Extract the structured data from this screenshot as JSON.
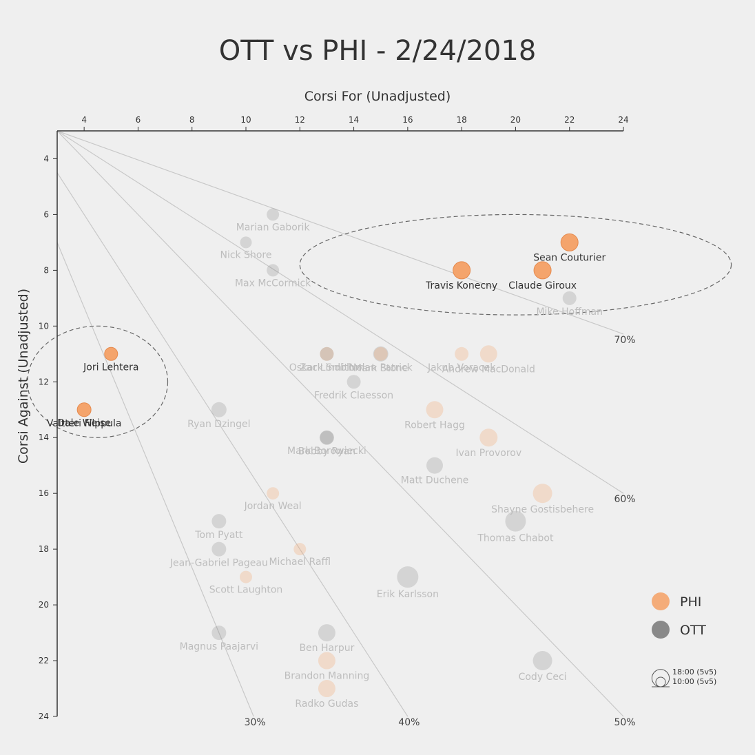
{
  "chart_data": {
    "type": "scatter",
    "title": "OTT vs PHI - 2/24/2018",
    "xlabel": "Corsi For (Unadjusted)",
    "ylabel": "Corsi Against (Unadjusted)",
    "xlim": [
      3,
      24
    ],
    "ylim": [
      3,
      24
    ],
    "x_ticks": [
      4,
      6,
      8,
      10,
      12,
      14,
      16,
      18,
      20,
      22,
      24
    ],
    "y_ticks": [
      4,
      6,
      8,
      10,
      12,
      14,
      16,
      18,
      20,
      22,
      24
    ],
    "x_axis_position": "top",
    "y_axis_inverted": true,
    "grid": false,
    "legend_position": "right",
    "colors": {
      "PHI": "#f4a46c",
      "OTT": "#777777",
      "background": "#efefef",
      "ref_line": "#c8c8c8",
      "highlight_ellipse": "#666666"
    },
    "reference_lines": [
      {
        "label": "30%",
        "ratio": 0.3
      },
      {
        "label": "40%",
        "ratio": 0.4
      },
      {
        "label": "50%",
        "ratio": 0.5
      },
      {
        "label": "60%",
        "ratio": 0.6
      },
      {
        "label": "70%",
        "ratio": 0.7
      }
    ],
    "legend": [
      {
        "name": "PHI",
        "color": "#f4a46c"
      },
      {
        "name": "OTT",
        "color": "#777777"
      }
    ],
    "size_legend": [
      {
        "label": "18:00 (5v5)",
        "toi": 18
      },
      {
        "label": "10:00 (5v5)",
        "toi": 10
      }
    ],
    "highlight_ellipses": [
      {
        "cx": 20,
        "cy": 7.8,
        "rx": 8,
        "ry": 1.8
      },
      {
        "cx": 4.5,
        "cy": 12,
        "rx": 2.6,
        "ry": 2
      }
    ],
    "points": [
      {
        "name": "Sean Couturier",
        "team": "PHI",
        "x": 22,
        "y": 7,
        "toi": 17,
        "highlight": true
      },
      {
        "name": "Travis Konecny",
        "team": "PHI",
        "x": 18,
        "y": 8,
        "toi": 17,
        "highlight": true
      },
      {
        "name": "Claude Giroux",
        "team": "PHI",
        "x": 21,
        "y": 8,
        "toi": 17,
        "highlight": true
      },
      {
        "name": "Jori Lehtera",
        "team": "PHI",
        "x": 5,
        "y": 11,
        "toi": 11,
        "highlight": true
      },
      {
        "name": "Dale Weise",
        "team": "PHI",
        "x": 4,
        "y": 13,
        "toi": 11,
        "highlight": true
      },
      {
        "name": "Valtteri Filppula",
        "team": "PHI",
        "x": 4,
        "y": 13,
        "toi": 12,
        "highlight": true
      },
      {
        "name": "Mike Hoffman",
        "team": "OTT",
        "x": 22,
        "y": 9,
        "toi": 12
      },
      {
        "name": "Marian Gaborik",
        "team": "OTT",
        "x": 11,
        "y": 6,
        "toi": 10
      },
      {
        "name": "Nick Shore",
        "team": "OTT",
        "x": 10,
        "y": 7,
        "toi": 9
      },
      {
        "name": "Max McCormick",
        "team": "OTT",
        "x": 11,
        "y": 8,
        "toi": 10
      },
      {
        "name": "Andrew MacDonald",
        "team": "PHI",
        "x": 19,
        "y": 11,
        "toi": 17
      },
      {
        "name": "Jakub Voracek",
        "team": "PHI",
        "x": 18,
        "y": 11,
        "toi": 12
      },
      {
        "name": "Oskar Lindblom",
        "team": "PHI",
        "x": 13,
        "y": 11,
        "toi": 12
      },
      {
        "name": "Zack Smith",
        "team": "OTT",
        "x": 13,
        "y": 11,
        "toi": 12
      },
      {
        "name": "Mark Stone",
        "team": "OTT",
        "x": 15,
        "y": 11,
        "toi": 14
      },
      {
        "name": "Nolan Patrick",
        "team": "PHI",
        "x": 15,
        "y": 11,
        "toi": 12
      },
      {
        "name": "Fredrik Claesson",
        "team": "OTT",
        "x": 14,
        "y": 12,
        "toi": 12
      },
      {
        "name": "Ryan Dzingel",
        "team": "OTT",
        "x": 9,
        "y": 13,
        "toi": 14
      },
      {
        "name": "Robert Hagg",
        "team": "PHI",
        "x": 17,
        "y": 13,
        "toi": 17
      },
      {
        "name": "Mark Borowiecki",
        "team": "OTT",
        "x": 13,
        "y": 14,
        "toi": 12
      },
      {
        "name": "Bobby Ryan",
        "team": "OTT",
        "x": 13,
        "y": 14,
        "toi": 13
      },
      {
        "name": "Ivan Provorov",
        "team": "PHI",
        "x": 19,
        "y": 14,
        "toi": 18
      },
      {
        "name": "Matt Duchene",
        "team": "OTT",
        "x": 17,
        "y": 15,
        "toi": 16
      },
      {
        "name": "Jordan Weal",
        "team": "PHI",
        "x": 11,
        "y": 16,
        "toi": 10
      },
      {
        "name": "Shayne Gostisbehere",
        "team": "PHI",
        "x": 21,
        "y": 16,
        "toi": 20
      },
      {
        "name": "Thomas Chabot",
        "team": "OTT",
        "x": 20,
        "y": 17,
        "toi": 22
      },
      {
        "name": "Tom Pyatt",
        "team": "OTT",
        "x": 9,
        "y": 17,
        "toi": 13
      },
      {
        "name": "Jean-Gabriel Pageau",
        "team": "OTT",
        "x": 9,
        "y": 18,
        "toi": 13
      },
      {
        "name": "Michael Raffl",
        "team": "PHI",
        "x": 12,
        "y": 18,
        "toi": 10
      },
      {
        "name": "Scott Laughton",
        "team": "PHI",
        "x": 10,
        "y": 19,
        "toi": 10
      },
      {
        "name": "Erik Karlsson",
        "team": "OTT",
        "x": 16,
        "y": 19,
        "toi": 23
      },
      {
        "name": "Magnus Paajarvi",
        "team": "OTT",
        "x": 9,
        "y": 21,
        "toi": 13
      },
      {
        "name": "Ben Harpur",
        "team": "OTT",
        "x": 13,
        "y": 21,
        "toi": 17
      },
      {
        "name": "Brandon Manning",
        "team": "PHI",
        "x": 13,
        "y": 22,
        "toi": 17
      },
      {
        "name": "Cody Ceci",
        "team": "OTT",
        "x": 21,
        "y": 22,
        "toi": 20
      },
      {
        "name": "Radko Gudas",
        "team": "PHI",
        "x": 13,
        "y": 23,
        "toi": 17
      }
    ]
  }
}
